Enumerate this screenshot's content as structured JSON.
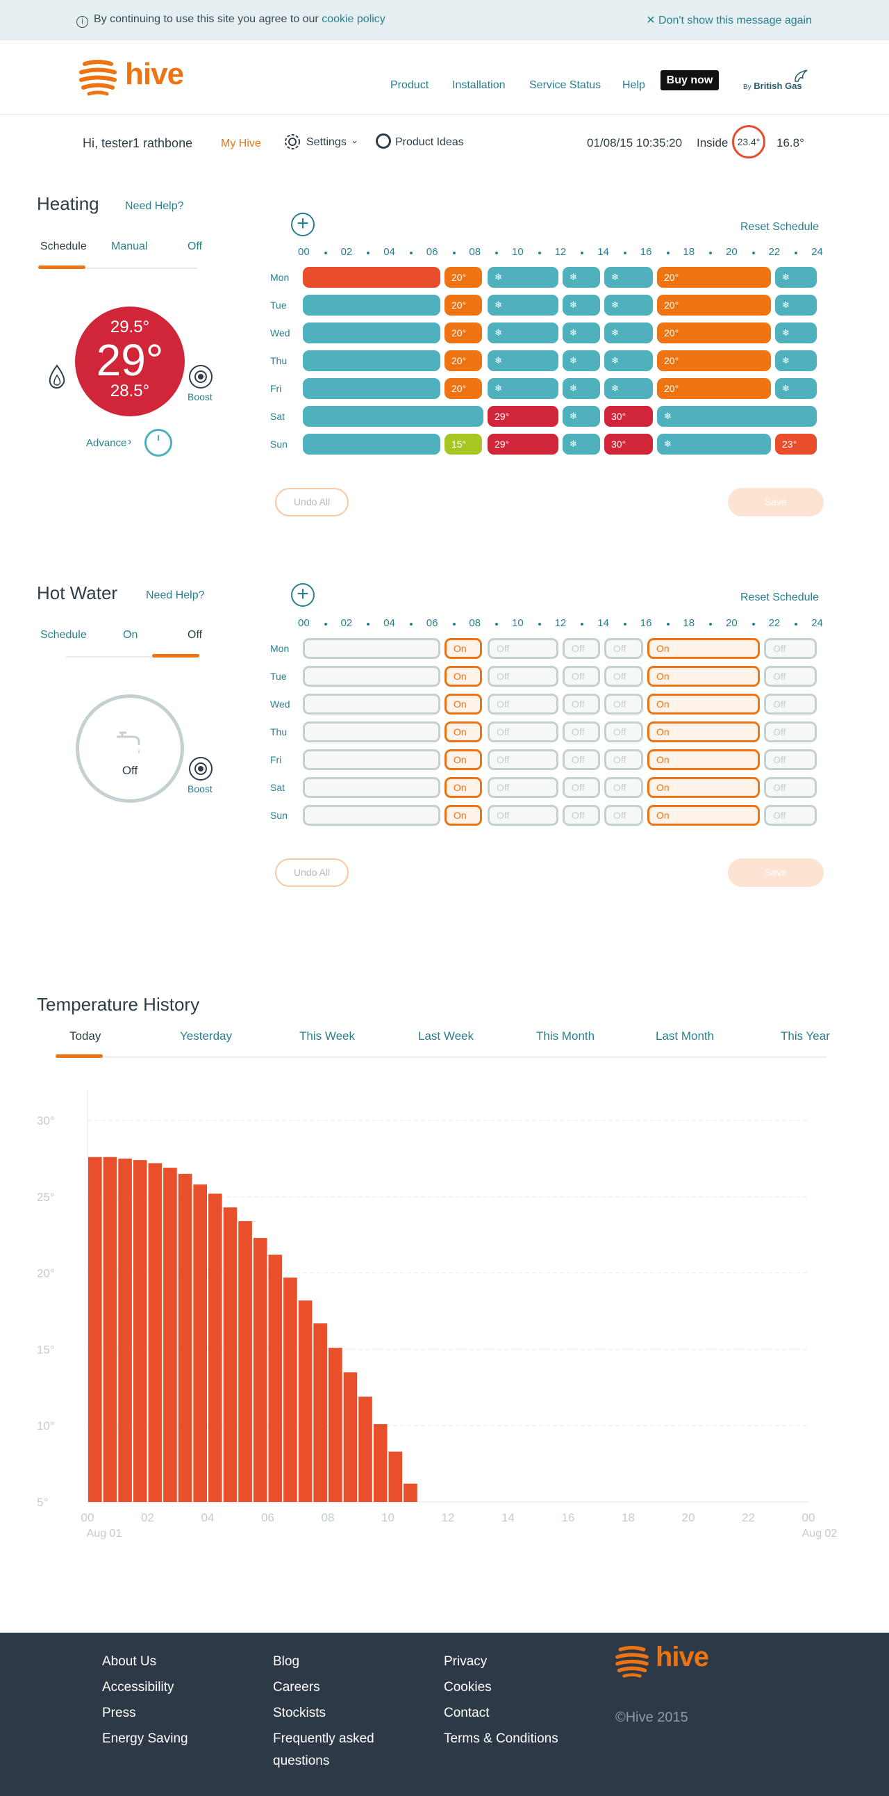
{
  "cookie": {
    "text": "By continuing to use this site you agree to our",
    "link": "cookie policy",
    "dismiss": "Don't show this message again"
  },
  "header": {
    "logo": "hive",
    "nav": [
      "Product",
      "Installation",
      "Service Status",
      "Help"
    ],
    "buy": "Buy now",
    "by": "By",
    "brand": "British Gas"
  },
  "user": {
    "greeting": "Hi, tester1 rathbone",
    "my_hive": "My Hive",
    "settings": "Settings",
    "ideas": "Product Ideas",
    "datetime": "01/08/15 10:35:20",
    "inside_label": "Inside",
    "inside_temp": "23.4°",
    "outside_temp": "16.8°"
  },
  "heating": {
    "title": "Heating",
    "help": "Need Help?",
    "tabs": [
      "Schedule",
      "Manual",
      "Off"
    ],
    "target_high": "29.5°",
    "target": "29°",
    "target_low": "28.5°",
    "boost": "Boost",
    "advance": "Advance",
    "reset": "Reset Schedule",
    "undo": "Undo All",
    "save": "Save",
    "hours": [
      "00",
      "02",
      "04",
      "06",
      "08",
      "10",
      "12",
      "14",
      "16",
      "18",
      "20",
      "22",
      "24"
    ],
    "days": [
      "Mon",
      "Tue",
      "Wed",
      "Thu",
      "Fri",
      "Sat",
      "Sun"
    ],
    "labels": {
      "l20": "20°",
      "l29": "29°",
      "l30": "30°",
      "l15": "15°",
      "l23": "23°",
      "snow": "❄"
    }
  },
  "hotwater": {
    "title": "Hot Water",
    "help": "Need Help?",
    "tabs": [
      "Schedule",
      "On",
      "Off"
    ],
    "state": "Off",
    "boost": "Boost",
    "reset": "Reset Schedule",
    "undo": "Undo All",
    "save": "Save",
    "hours": [
      "00",
      "02",
      "04",
      "06",
      "08",
      "10",
      "12",
      "14",
      "16",
      "18",
      "20",
      "22",
      "24"
    ],
    "days": [
      "Mon",
      "Tue",
      "Wed",
      "Thu",
      "Fri",
      "Sat",
      "Sun"
    ],
    "on": "On",
    "off": "Off"
  },
  "history": {
    "title": "Temperature History",
    "tabs": [
      "Today",
      "Yesterday",
      "This Week",
      "Last Week",
      "This Month",
      "Last Month",
      "This Year"
    ],
    "yticks": [
      "30°",
      "25°",
      "20°",
      "15°",
      "10°",
      "5°"
    ],
    "xticks": [
      "00",
      "02",
      "04",
      "06",
      "08",
      "10",
      "12",
      "14",
      "16",
      "18",
      "20",
      "22",
      "00"
    ],
    "xsub_start": "Aug 01",
    "xsub_end": "Aug 02"
  },
  "chart_data": {
    "type": "bar",
    "title": "Temperature History",
    "xlabel": "",
    "ylabel": "",
    "ylim": [
      5,
      31
    ],
    "x": [
      "00:00",
      "00:30",
      "01:00",
      "01:30",
      "02:00",
      "02:30",
      "03:00",
      "03:30",
      "04:00",
      "04:30",
      "05:00",
      "05:30",
      "06:00",
      "06:30",
      "07:00",
      "07:30",
      "08:00",
      "08:30",
      "09:00",
      "09:30",
      "10:00",
      "10:30"
    ],
    "values": [
      27.6,
      27.6,
      27.5,
      27.4,
      27.2,
      26.9,
      26.5,
      25.8,
      25.2,
      24.3,
      23.4,
      22.3,
      21.2,
      19.7,
      18.2,
      16.7,
      15.1,
      13.5,
      11.9,
      10.1,
      8.3,
      6.2
    ],
    "colors": {
      "bar": "#e84f2a"
    }
  },
  "footer": {
    "col1": [
      "About Us",
      "Accessibility",
      "Press",
      "Energy Saving"
    ],
    "col2": [
      "Blog",
      "Careers",
      "Stockists",
      "Frequently asked",
      "questions"
    ],
    "col3": [
      "Privacy",
      "Cookies",
      "Contact",
      "Terms & Conditions"
    ],
    "logo": "hive",
    "copyright": "©Hive 2015"
  }
}
